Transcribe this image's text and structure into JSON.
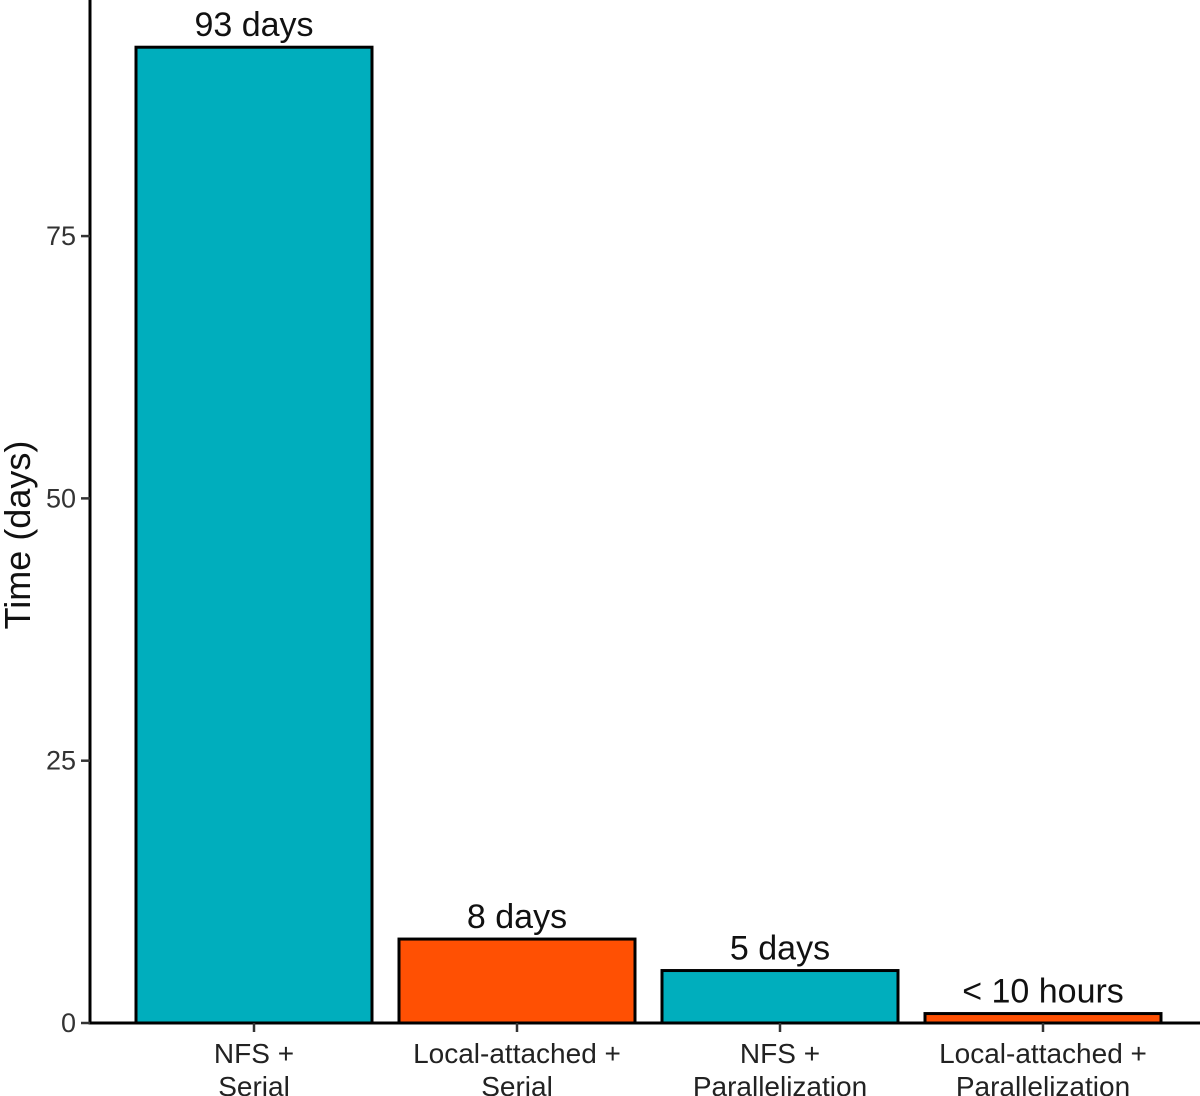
{
  "chart_data": {
    "type": "bar",
    "title": "",
    "xlabel": "",
    "ylabel": "Time (days)",
    "ylim": [
      0,
      97.5
    ],
    "yticks": [
      0,
      25,
      50,
      75
    ],
    "grid": false,
    "legend": "none",
    "categories": [
      [
        "NFS +",
        "Serial"
      ],
      [
        "Local-attached +",
        "Serial"
      ],
      [
        "NFS +",
        "Parallelization"
      ],
      [
        "Local-attached +",
        "Parallelization"
      ]
    ],
    "values": [
      93,
      8,
      5,
      0.9
    ],
    "data_labels": [
      "93 days",
      "8 days",
      "5 days",
      "< 10 hours"
    ],
    "colors": [
      "#00AEBD",
      "#FF5003",
      "#00AEBD",
      "#FF5003"
    ],
    "bar_outline_color": "#000000"
  }
}
